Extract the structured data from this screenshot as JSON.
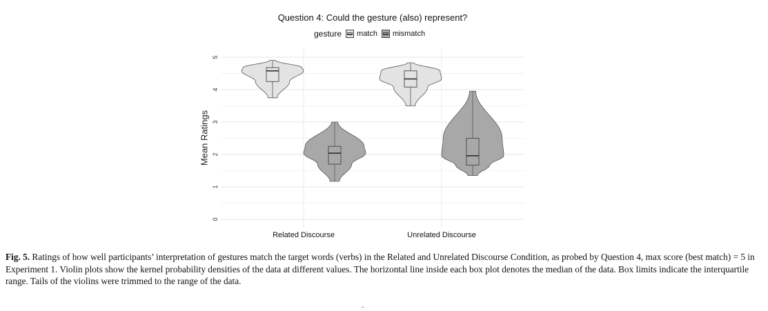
{
  "chart_data": {
    "type": "violin",
    "title": "Question 4: Could the gesture (also) represent?",
    "xlabel": "",
    "ylabel": "Mean Ratings",
    "ylim": [
      0,
      5
    ],
    "yticks": [
      "0",
      "1",
      "2",
      "3",
      "4",
      "5"
    ],
    "categories": [
      "Related Discourse",
      "Unrelated Discourse"
    ],
    "legend": {
      "title": "gesture",
      "placement": "top",
      "entries": [
        "match",
        "mismatch"
      ]
    },
    "grid": true,
    "series": [
      {
        "name": "match",
        "color": "#e3e3e3",
        "groups": [
          {
            "category": "Related Discourse",
            "min": 3.75,
            "q1": 4.25,
            "median": 4.58,
            "q3": 4.68,
            "max": 4.9
          },
          {
            "category": "Unrelated Discourse",
            "min": 3.5,
            "q1": 4.08,
            "median": 4.33,
            "q3": 4.58,
            "max": 4.83
          }
        ]
      },
      {
        "name": "mismatch",
        "color": "#a8a8a8",
        "groups": [
          {
            "category": "Related Discourse",
            "min": 1.17,
            "q1": 1.7,
            "median": 2.04,
            "q3": 2.25,
            "max": 3.0
          },
          {
            "category": "Unrelated Discourse",
            "min": 1.35,
            "q1": 1.67,
            "median": 1.96,
            "q3": 2.5,
            "max": 3.95
          }
        ]
      }
    ]
  },
  "caption": {
    "label": "Fig. 5.",
    "text": "Ratings of how well participants’ interpretation of gestures match the target words (verbs) in the Related and Unrelated Discourse Condition, as probed by Question 4, max score (best match) = 5 in Experiment 1. Violin plots show the kernel probability densities of the data at different values. The horizontal line inside each box plot denotes the median of the data. Box limits indicate the interquartile range. Tails of the violins were trimmed to the range of the data."
  },
  "footer_mark": "-"
}
